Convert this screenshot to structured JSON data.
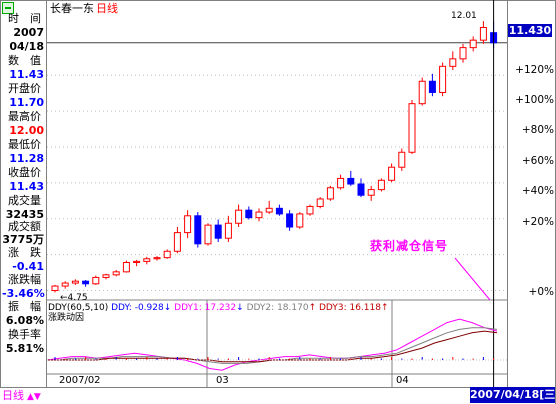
{
  "title": {
    "stock": "长春一东",
    "period": "日线"
  },
  "info_panel": [
    {
      "label": "时　间",
      "value": "2007",
      "value2": "04/18",
      "color": "#000000"
    },
    {
      "label": "数　值",
      "value": "11.43",
      "color": "#0000ff"
    },
    {
      "label": "开盘价",
      "value": "11.70",
      "color": "#0000ff"
    },
    {
      "label": "最高价",
      "value": "12.00",
      "color": "#ff0000"
    },
    {
      "label": "最低价",
      "value": "11.28",
      "color": "#0000ff"
    },
    {
      "label": "收盘价",
      "value": "11.43",
      "color": "#0000ff"
    },
    {
      "label": "成交量",
      "value": "32435",
      "color": "#000000"
    },
    {
      "label": "成交额",
      "value": "3775万",
      "color": "#000000"
    },
    {
      "label": "涨　跌",
      "value": "-0.41",
      "color": "#0000ff"
    },
    {
      "label": "涨跌幅",
      "value": "-3.46%",
      "color": "#0000ff"
    },
    {
      "label": "振　幅",
      "value": "6.08%",
      "color": "#000000"
    },
    {
      "label": "换手率",
      "value": "5.81%",
      "color": "#000000"
    }
  ],
  "price_axis": {
    "current_price": "11.430",
    "ticks": [
      "+120%",
      "+100%",
      "+80%",
      "+60%",
      "+40%",
      "+20%",
      "+0%"
    ]
  },
  "annotations": {
    "max_label": "12.01",
    "min_label": "4.75",
    "signal_text": "获利减仓信号"
  },
  "indicator": {
    "params": "DDY(60,5,10)",
    "ddy_label": "DDY:",
    "ddy_value": "-0.928",
    "ddy1_label": "DDY1:",
    "ddy1_value": "17.232",
    "ddy2_label": "DDY2:",
    "ddy2_value": "18.170",
    "ddy3_label": "DDY3:",
    "ddy3_value": "16.118",
    "title": "涨跌动因"
  },
  "time_axis": {
    "labels": [
      "2007/02",
      "03",
      "04"
    ],
    "selected_date": "2007/04/18[三]"
  },
  "bottom_bar": {
    "mode_label": "日线",
    "arrows": "▲▼"
  },
  "colors": {
    "up": "#ff0000",
    "down": "#0000ff",
    "signal": "#ff00ff",
    "highlight": "#0000c0"
  },
  "chart_data": {
    "type": "candlestick",
    "period": "daily",
    "candles_ohlc": [
      [
        4.8,
        4.95,
        4.75,
        4.92
      ],
      [
        4.92,
        5.05,
        4.85,
        5.0
      ],
      [
        5.0,
        5.1,
        4.95,
        5.05
      ],
      [
        5.05,
        5.08,
        4.9,
        4.98
      ],
      [
        4.98,
        5.2,
        4.95,
        5.15
      ],
      [
        5.15,
        5.25,
        5.1,
        5.22
      ],
      [
        5.22,
        5.35,
        5.18,
        5.3
      ],
      [
        5.3,
        5.6,
        5.28,
        5.55
      ],
      [
        5.55,
        5.62,
        5.45,
        5.58
      ],
      [
        5.58,
        5.7,
        5.5,
        5.65
      ],
      [
        5.65,
        5.72,
        5.6,
        5.68
      ],
      [
        5.68,
        5.9,
        5.65,
        5.85
      ],
      [
        5.85,
        6.5,
        5.8,
        6.35
      ],
      [
        6.35,
        6.95,
        6.2,
        6.8
      ],
      [
        6.8,
        6.9,
        5.95,
        6.05
      ],
      [
        6.05,
        6.6,
        6.0,
        6.55
      ],
      [
        6.55,
        6.7,
        6.1,
        6.2
      ],
      [
        6.2,
        6.8,
        6.1,
        6.6
      ],
      [
        6.6,
        7.1,
        6.5,
        6.95
      ],
      [
        6.95,
        7.05,
        6.7,
        6.75
      ],
      [
        6.75,
        7.0,
        6.65,
        6.9
      ],
      [
        6.9,
        7.2,
        6.85,
        7.0
      ],
      [
        7.0,
        7.1,
        6.8,
        6.85
      ],
      [
        6.85,
        6.95,
        6.4,
        6.5
      ],
      [
        6.5,
        6.9,
        6.45,
        6.85
      ],
      [
        6.85,
        7.1,
        6.8,
        7.05
      ],
      [
        7.05,
        7.3,
        7.0,
        7.25
      ],
      [
        7.25,
        7.6,
        7.2,
        7.55
      ],
      [
        7.55,
        7.9,
        7.5,
        7.8
      ],
      [
        7.8,
        8.0,
        7.6,
        7.65
      ],
      [
        7.65,
        7.8,
        7.3,
        7.35
      ],
      [
        7.35,
        7.6,
        7.2,
        7.5
      ],
      [
        7.5,
        7.8,
        7.45,
        7.75
      ],
      [
        7.75,
        8.2,
        7.7,
        8.1
      ],
      [
        8.1,
        8.6,
        8.0,
        8.5
      ],
      [
        8.5,
        9.9,
        8.45,
        9.8
      ],
      [
        9.8,
        10.5,
        9.75,
        10.4
      ],
      [
        10.4,
        10.6,
        10.0,
        10.1
      ],
      [
        10.1,
        10.9,
        10.0,
        10.8
      ],
      [
        10.8,
        11.2,
        10.7,
        11.0
      ],
      [
        11.0,
        11.4,
        10.9,
        11.3
      ],
      [
        11.3,
        11.6,
        11.2,
        11.5
      ],
      [
        11.5,
        12.01,
        11.4,
        11.84
      ],
      [
        11.7,
        12.0,
        11.28,
        11.43
      ]
    ],
    "y_axis_range": [
      4.6,
      12.2
    ],
    "y_percent_ticks": [
      "+0%",
      "+20%",
      "+40%",
      "+60%",
      "+80%",
      "+100%",
      "+120%"
    ],
    "x_tick_labels": [
      "2007/02",
      "03",
      "04"
    ],
    "indicator": {
      "name": "DDY(60,5,10)",
      "lines": [
        {
          "name": "DDY1",
          "color": "#ff00ff",
          "last": 17.232
        },
        {
          "name": "DDY2",
          "color": "#808080",
          "last": 18.17
        },
        {
          "name": "DDY3",
          "color": "#800000",
          "last": 16.118
        }
      ],
      "ddy_last": -0.928
    }
  }
}
